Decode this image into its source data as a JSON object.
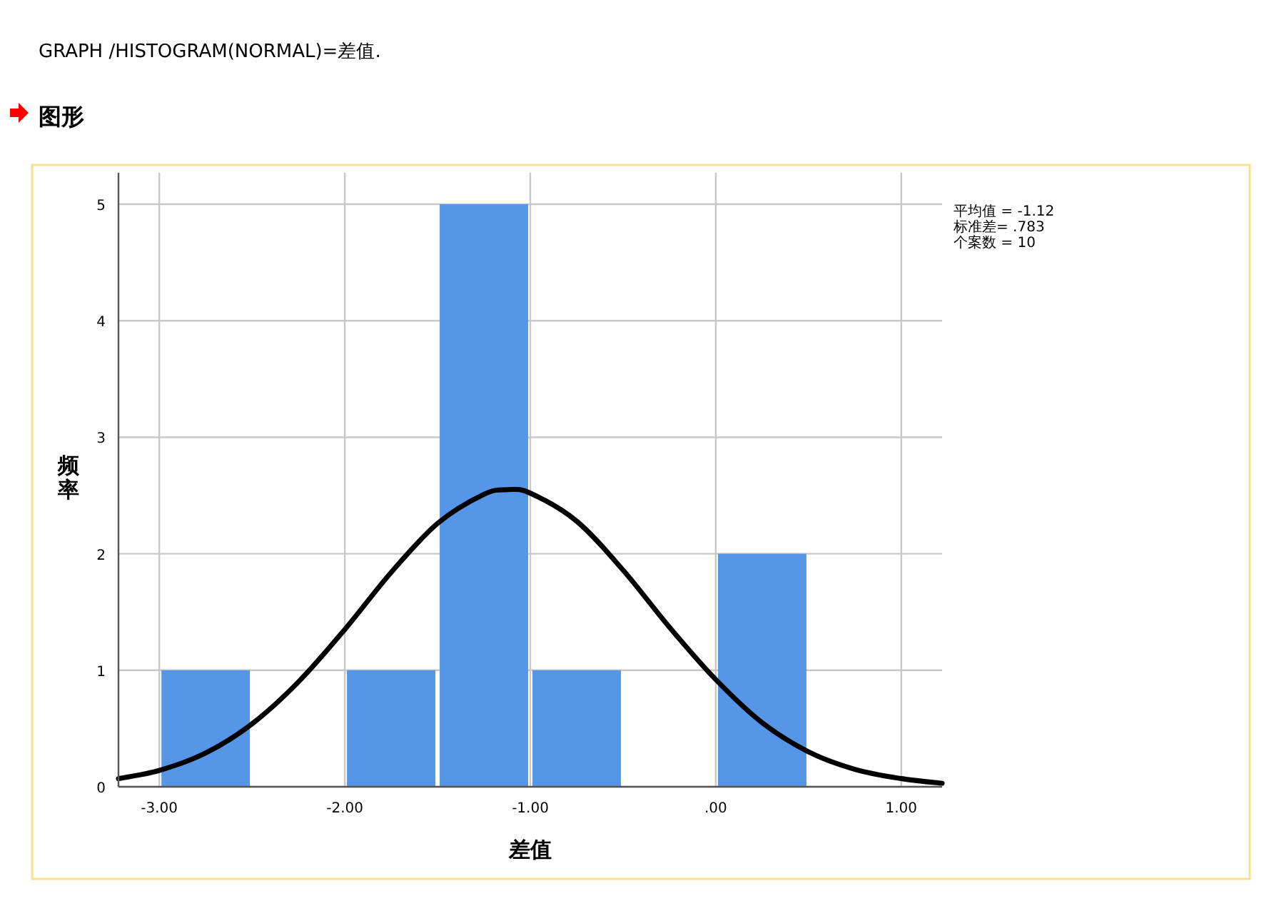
{
  "chart_data": {
    "type": "histogram",
    "title": "图形",
    "xlabel": "差值",
    "ylabel": "频率",
    "annotations": [
      "GRAPH /HISTOGRAM(NORMAL)=差值.",
      "平均值 = -1.12",
      "标准差= .783",
      "个案数 = 10"
    ],
    "bins": [
      -3.0,
      -2.5,
      -2.0,
      -1.5,
      -1.0,
      -0.5,
      0.0,
      0.5
    ],
    "values": [
      1,
      0,
      1,
      5,
      1,
      0,
      2
    ],
    "color": "#5596e6",
    "series": [
      {
        "type": "line",
        "color": "#000000",
        "x": [
          -3.22,
          -3.0,
          -2.75,
          -2.5,
          -2.25,
          -2.0,
          -1.75,
          -1.5,
          -1.25,
          -1.12,
          -1.0,
          -0.75,
          -0.5,
          -0.25,
          0.0,
          0.25,
          0.5,
          0.75,
          1.0,
          1.22
        ],
        "values": [
          0.07,
          0.14,
          0.29,
          0.54,
          0.9,
          1.35,
          1.84,
          2.26,
          2.51,
          2.55,
          2.52,
          2.28,
          1.86,
          1.37,
          0.92,
          0.55,
          0.3,
          0.15,
          0.07,
          0.03
        ]
      }
    ],
    "xlim": [
      -3.22,
      1.22
    ],
    "ylim": [
      0,
      5.27
    ],
    "xticks": [
      {
        "value": -3,
        "label": "-3.00"
      },
      {
        "value": -2,
        "label": "-2.00"
      },
      {
        "value": -1,
        "label": "-1.00"
      },
      {
        "value": 0,
        "label": ".00"
      },
      {
        "value": 1,
        "label": "1.00"
      }
    ],
    "yticks": [
      0,
      1,
      2,
      3,
      4,
      5
    ],
    "grid": true
  }
}
